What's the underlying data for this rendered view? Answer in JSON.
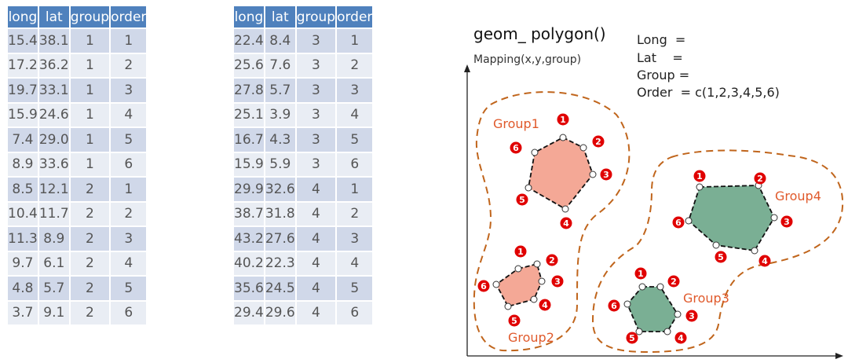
{
  "table": {
    "headers": [
      "long",
      "lat",
      "group",
      "order",
      "long",
      "lat",
      "group",
      "order"
    ],
    "left_rows": [
      [
        "15.4",
        "38.1",
        "1",
        "1"
      ],
      [
        "17.2",
        "36.2",
        "1",
        "2"
      ],
      [
        "19.7",
        "33.1",
        "1",
        "3"
      ],
      [
        "15.9",
        "24.6",
        "1",
        "4"
      ],
      [
        "7.4",
        "29.0",
        "1",
        "5"
      ],
      [
        "8.9",
        "33.6",
        "1",
        "6"
      ],
      [
        "8.5",
        "12.1",
        "2",
        "1"
      ],
      [
        "10.4",
        "11.7",
        "2",
        "2"
      ],
      [
        "11.3",
        "8.9",
        "2",
        "3"
      ],
      [
        "9.7",
        "6.1",
        "2",
        "4"
      ],
      [
        "4.8",
        "5.7",
        "2",
        "5"
      ],
      [
        "3.7",
        "9.1",
        "2",
        "6"
      ]
    ],
    "right_rows": [
      [
        "22.4",
        "8.4",
        "3",
        "1"
      ],
      [
        "25.6",
        "7.6",
        "3",
        "2"
      ],
      [
        "27.8",
        "5.7",
        "3",
        "3"
      ],
      [
        "25.1",
        "3.9",
        "3",
        "4"
      ],
      [
        "16.7",
        "4.3",
        "3",
        "5"
      ],
      [
        "15.9",
        "5.9",
        "3",
        "6"
      ],
      [
        "29.9",
        "32.6",
        "4",
        "1"
      ],
      [
        "38.7",
        "31.8",
        "4",
        "2"
      ],
      [
        "43.2",
        "27.6",
        "4",
        "3"
      ],
      [
        "40.2",
        "22.3",
        "4",
        "4"
      ],
      [
        "35.6",
        "24.5",
        "4",
        "5"
      ],
      [
        "29.4",
        "29.6",
        "4",
        "6"
      ]
    ]
  },
  "diagram": {
    "title": "geom_ polygon()",
    "subtitle": "Mapping(x,y,group)",
    "mapping_lines": [
      "Long  =",
      "Lat    =",
      "Group =",
      "Order  = c(1,2,3,4,5,6)"
    ],
    "groups": [
      {
        "label": "Group1",
        "fill": "#f4a896"
      },
      {
        "label": "Group2",
        "fill": "#f4a896"
      },
      {
        "label": "Group3",
        "fill": "#7aaf94"
      },
      {
        "label": "Group4",
        "fill": "#7aaf94"
      }
    ],
    "order_numbers": [
      "1",
      "2",
      "3",
      "4",
      "5",
      "6"
    ],
    "colors": {
      "header": "#4f81bd",
      "row_dark": "#d0d8e9",
      "row_light": "#e9edf4",
      "outline": "#c0651c",
      "badge": "#e00000",
      "group_label": "#e05a2c"
    }
  }
}
